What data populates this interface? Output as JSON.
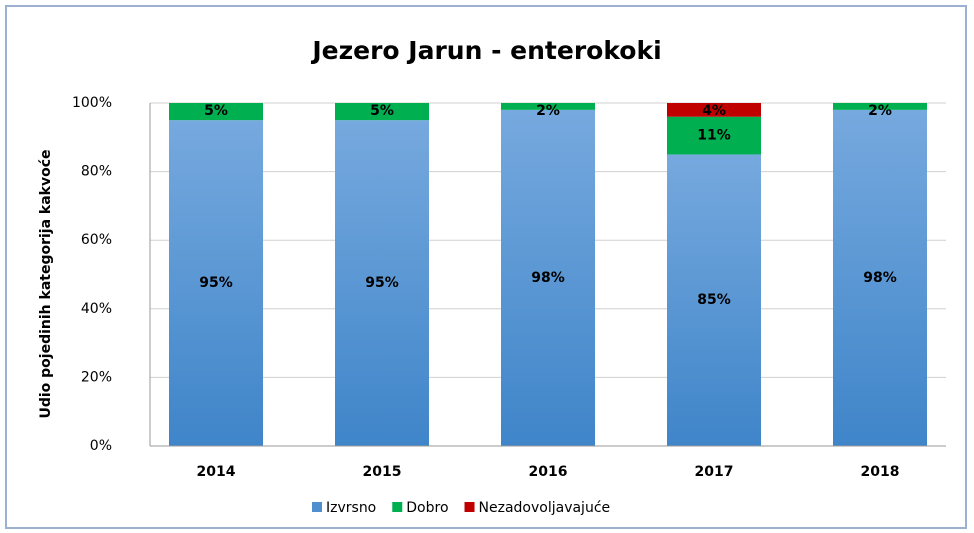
{
  "chart_data": {
    "type": "stacked_bar",
    "title": "Jezero Jarun - enterokoki",
    "y_label": "Udio pojedinih kategorija kakvoće",
    "categories": [
      "2014",
      "2015",
      "2016",
      "2017",
      "2018"
    ],
    "series": [
      {
        "name": "Izvrsno",
        "color": "#4f8fd0",
        "values": [
          95,
          95,
          98,
          85,
          98
        ],
        "value_labels": [
          "95%",
          "95%",
          "98%",
          "85%",
          "98%"
        ]
      },
      {
        "name": "Dobro",
        "color": "#00b050",
        "values": [
          5,
          5,
          2,
          11,
          2
        ],
        "value_labels": [
          "5%",
          "5%",
          "2%",
          "11%",
          "2%"
        ]
      },
      {
        "name": "Nezadovoljavajuće",
        "color": "#c00000",
        "values": [
          null,
          null,
          null,
          4,
          null
        ],
        "value_labels": [
          null,
          null,
          null,
          "4%",
          null
        ]
      }
    ],
    "ylim": [
      0,
      100
    ],
    "yticks": [
      {
        "value": 0,
        "label": "0%"
      },
      {
        "value": 20,
        "label": "20%"
      },
      {
        "value": 40,
        "label": "40%"
      },
      {
        "value": 60,
        "label": "60%"
      },
      {
        "value": 80,
        "label": "80%"
      },
      {
        "value": 100,
        "label": "100%"
      }
    ],
    "grid": true,
    "legend": "bottom"
  }
}
